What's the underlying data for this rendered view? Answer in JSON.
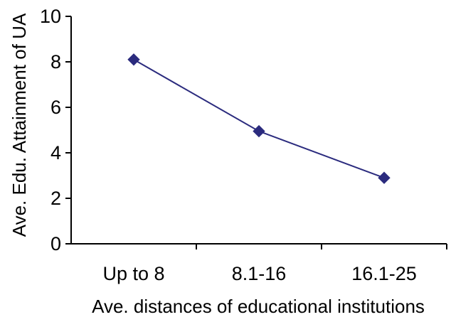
{
  "chart_data": {
    "type": "line",
    "title": "",
    "xlabel": "Ave. distances of educational institutions",
    "ylabel": "Ave. Edu. Attainment of UA",
    "categories": [
      "Up to 8",
      "8.1-16",
      "16.1-25"
    ],
    "series": [
      {
        "values": [
          8.1,
          4.95,
          2.9
        ],
        "color": "#2b2b7e",
        "marker": "diamond"
      }
    ],
    "ylim": [
      0,
      10
    ],
    "yticks": [
      0,
      2,
      4,
      6,
      8,
      10
    ],
    "grid": false,
    "legend": "none"
  }
}
